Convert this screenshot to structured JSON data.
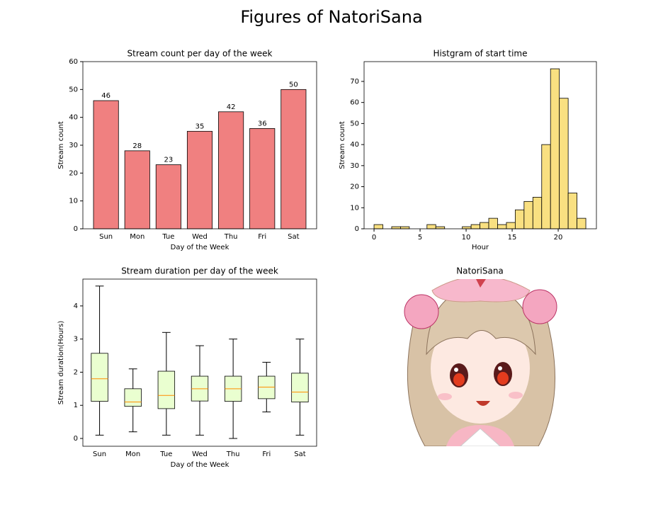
{
  "title": "Figures of NatoriSana",
  "chart_data": [
    {
      "type": "bar",
      "title": "Stream count per day of the week",
      "categories": [
        "Sun",
        "Mon",
        "Tue",
        "Wed",
        "Thu",
        "Fri",
        "Sat"
      ],
      "values": [
        46,
        28,
        23,
        35,
        42,
        36,
        50
      ],
      "color": "#f08080",
      "xlabel": "Day of the Week",
      "ylabel": "Stream count",
      "ylim": [
        0,
        60
      ],
      "yticks": [
        0,
        10,
        20,
        30,
        40,
        50,
        60
      ]
    },
    {
      "type": "histogram",
      "title": "Histgram of start time",
      "bins": [
        0,
        0.9583,
        1.9167,
        2.875,
        3.8333,
        4.7917,
        5.75,
        6.7083,
        7.6667,
        8.625,
        9.5833,
        10.5417,
        11.5,
        12.4583,
        13.4167,
        14.375,
        15.3333,
        16.2917,
        17.25,
        18.2083,
        19.1667,
        20.125,
        21.0833,
        22.0417,
        23
      ],
      "values": [
        2,
        0,
        1,
        1,
        0,
        0,
        2,
        1,
        0,
        0,
        1,
        2,
        3,
        5,
        2,
        3,
        9,
        13,
        15,
        40,
        76,
        62,
        17,
        5
      ],
      "color": "#f9e081",
      "xlabel": "Hour",
      "ylabel": "Stream count",
      "xlim": [
        -1.08,
        24.15
      ],
      "xticks": [
        0,
        5,
        10,
        15,
        20
      ],
      "ylim": [
        0,
        79.4
      ],
      "yticks": [
        0,
        10,
        20,
        30,
        40,
        50,
        60,
        70
      ]
    },
    {
      "type": "boxplot",
      "title": "Stream duration per day of the week",
      "categories": [
        "Sun",
        "Mon",
        "Tue",
        "Wed",
        "Thu",
        "Fri",
        "Sat"
      ],
      "whislo": [
        0.1,
        0.2,
        0.1,
        0.1,
        0.0,
        0.8,
        0.1
      ],
      "q1": [
        1.12,
        0.97,
        0.9,
        1.13,
        1.12,
        1.2,
        1.1
      ],
      "median": [
        1.8,
        1.1,
        1.3,
        1.5,
        1.5,
        1.55,
        1.4
      ],
      "q3": [
        2.57,
        1.5,
        2.03,
        1.88,
        1.88,
        1.88,
        1.97
      ],
      "whishi": [
        4.6,
        2.1,
        3.2,
        2.8,
        3.0,
        2.3,
        3.0
      ],
      "color": "#eaffd0",
      "median_color": "#ff8c00",
      "xlabel": "Day of the Week",
      "ylabel": "Stream duration(Hours)",
      "ylim": [
        -0.235,
        4.81
      ],
      "yticks": [
        0,
        1,
        2,
        3,
        4
      ]
    },
    {
      "type": "image",
      "title": "NatoriSana"
    }
  ]
}
